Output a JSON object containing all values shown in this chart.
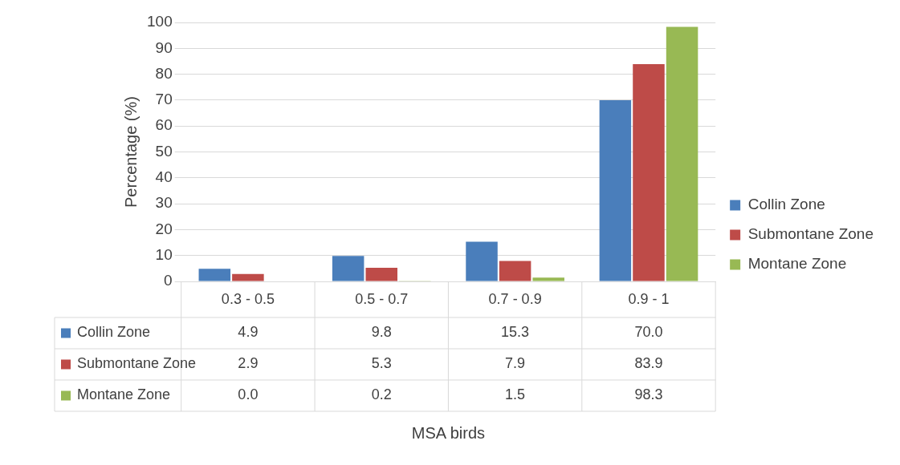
{
  "chart_data": {
    "type": "bar",
    "annotations": [
      "MSA birds"
    ],
    "ylabel": "Percentage (%)",
    "categories": [
      "0.3 - 0.5",
      "0.5 - 0.7",
      "0.7 - 0.9",
      "0.9 - 1"
    ],
    "series": [
      {
        "name": "Collin Zone",
        "color": "#4a7ebb",
        "values": [
          4.9,
          9.8,
          15.3,
          70.0
        ],
        "value_labels": [
          "4.9",
          "9.8",
          "15.3",
          "70.0"
        ]
      },
      {
        "name": "Submontane Zone",
        "color": "#be4b48",
        "values": [
          2.9,
          5.3,
          7.9,
          83.9
        ],
        "value_labels": [
          "2.9",
          "5.3",
          "7.9",
          "83.9"
        ]
      },
      {
        "name": "Montane Zone",
        "color": "#98b954",
        "values": [
          0.0,
          0.2,
          1.5,
          98.3
        ],
        "value_labels": [
          "0.0",
          "0.2",
          "1.5",
          "98.3"
        ]
      }
    ],
    "ylim": [
      0,
      100
    ],
    "yticks": [
      0,
      10,
      20,
      30,
      40,
      50,
      60,
      70,
      80,
      90,
      100
    ],
    "grid": "y",
    "legend": "right"
  }
}
